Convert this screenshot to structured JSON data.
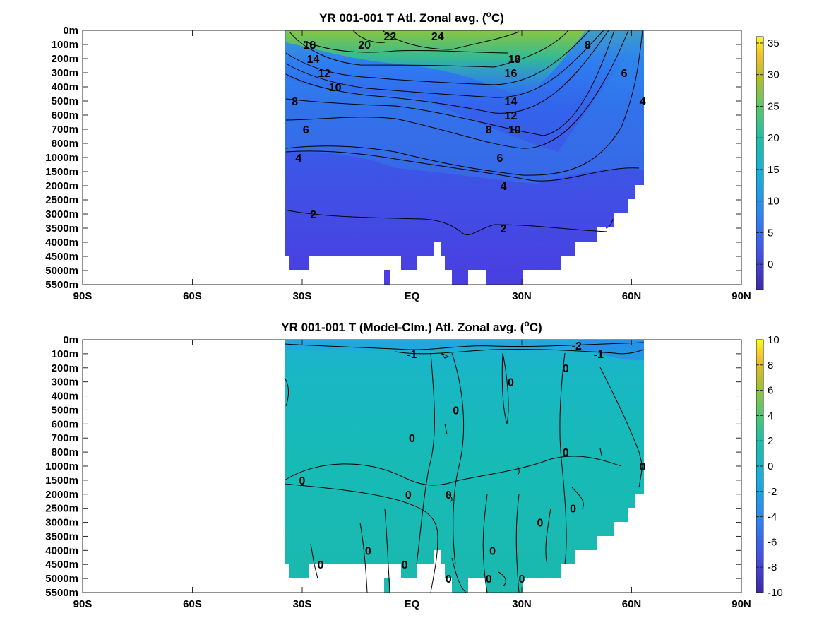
{
  "chart_data": [
    {
      "type": "heatmap",
      "title_parts": [
        "YR 001-001 T Atl. Zonal avg. (",
        "o",
        "C)"
      ],
      "x_ticks": [
        "90S",
        "60S",
        "30S",
        "EQ",
        "30N",
        "60N",
        "90N"
      ],
      "x_tick_values": [
        -90,
        -60,
        -30,
        0,
        30,
        60,
        90
      ],
      "xlim": [
        -90,
        90
      ],
      "y_ticks": [
        "0m",
        "100m",
        "200m",
        "300m",
        "400m",
        "500m",
        "600m",
        "700m",
        "800m",
        "1000m",
        "1500m",
        "2000m",
        "2500m",
        "3000m",
        "3500m",
        "4000m",
        "4500m",
        "5000m",
        "5500m"
      ],
      "colorbar": {
        "ticks": [
          "0",
          "5",
          "10",
          "15",
          "20",
          "25",
          "30",
          "35"
        ],
        "tick_values": [
          0,
          5,
          10,
          15,
          20,
          25,
          30,
          35
        ],
        "range": [
          -4,
          36
        ]
      },
      "data_extent": {
        "lat": [
          -34,
          63
        ]
      },
      "contour_labels": [
        {
          "text": "24",
          "lat": 7,
          "depth": "0m"
        },
        {
          "text": "22",
          "lat": -6,
          "depth": "0m"
        },
        {
          "text": "20",
          "lat": -13,
          "depth": "100m"
        },
        {
          "text": "18",
          "lat": -28,
          "depth": "100m"
        },
        {
          "text": "16",
          "lat": -28,
          "depth": "100m"
        },
        {
          "text": "14",
          "lat": -27,
          "depth": "200m"
        },
        {
          "text": "12",
          "lat": -24,
          "depth": "300m"
        },
        {
          "text": "10",
          "lat": -21,
          "depth": "400m"
        },
        {
          "text": "8",
          "lat": -32,
          "depth": "500m"
        },
        {
          "text": "6",
          "lat": -29,
          "depth": "700m"
        },
        {
          "text": "4",
          "lat": -31,
          "depth": "1000m"
        },
        {
          "text": "2",
          "lat": -27,
          "depth": "3000m"
        },
        {
          "text": "2",
          "lat": 25,
          "depth": "3500m"
        },
        {
          "text": "4",
          "lat": 25,
          "depth": "2000m"
        },
        {
          "text": "6",
          "lat": 24,
          "depth": "1000m"
        },
        {
          "text": "8",
          "lat": 21,
          "depth": "700m"
        },
        {
          "text": "10",
          "lat": 28,
          "depth": "700m"
        },
        {
          "text": "12",
          "lat": 27,
          "depth": "600m"
        },
        {
          "text": "14",
          "lat": 27,
          "depth": "500m"
        },
        {
          "text": "16",
          "lat": 27,
          "depth": "300m"
        },
        {
          "text": "18",
          "lat": 28,
          "depth": "200m"
        },
        {
          "text": "8",
          "lat": 48,
          "depth": "100m"
        },
        {
          "text": "6",
          "lat": 58,
          "depth": "300m"
        },
        {
          "text": "4",
          "lat": 63,
          "depth": "500m"
        }
      ]
    },
    {
      "type": "heatmap",
      "title_parts": [
        "YR 001-001 T (Model-Clm.) Atl. Zonal avg. (",
        "o",
        "C)"
      ],
      "x_ticks": [
        "90S",
        "60S",
        "30S",
        "EQ",
        "30N",
        "60N",
        "90N"
      ],
      "x_tick_values": [
        -90,
        -60,
        -30,
        0,
        30,
        60,
        90
      ],
      "xlim": [
        -90,
        90
      ],
      "y_ticks": [
        "0m",
        "100m",
        "200m",
        "300m",
        "400m",
        "500m",
        "600m",
        "700m",
        "800m",
        "1000m",
        "1500m",
        "2000m",
        "2500m",
        "3000m",
        "3500m",
        "4000m",
        "4500m",
        "5000m",
        "5500m"
      ],
      "colorbar": {
        "ticks": [
          "10",
          "8",
          "6",
          "4",
          "2",
          "0",
          "-2",
          "-4",
          "-6",
          "-8",
          "-10"
        ],
        "tick_values": [
          10,
          8,
          6,
          4,
          2,
          0,
          -2,
          -4,
          -6,
          -8,
          -10
        ],
        "range": [
          -10,
          10
        ]
      },
      "data_extent": {
        "lat": [
          -34,
          63
        ]
      },
      "contour_labels": [
        {
          "text": "-2",
          "lat": 45,
          "depth": "0m"
        },
        {
          "text": "-1",
          "lat": 0,
          "depth": "100m"
        },
        {
          "text": "-1",
          "lat": 51,
          "depth": "100m"
        },
        {
          "text": "0",
          "lat": 42,
          "depth": "200m"
        },
        {
          "text": "0",
          "lat": 27,
          "depth": "300m"
        },
        {
          "text": "0",
          "lat": 12,
          "depth": "500m"
        },
        {
          "text": "0",
          "lat": 0,
          "depth": "700m"
        },
        {
          "text": "0",
          "lat": 42,
          "depth": "800m"
        },
        {
          "text": "0",
          "lat": 63,
          "depth": "1000m"
        },
        {
          "text": "0",
          "lat": -30,
          "depth": "1500m"
        },
        {
          "text": "0",
          "lat": -1,
          "depth": "2000m"
        },
        {
          "text": "0",
          "lat": 10,
          "depth": "2000m"
        },
        {
          "text": "0",
          "lat": 44,
          "depth": "2500m"
        },
        {
          "text": "0",
          "lat": 35,
          "depth": "3000m"
        },
        {
          "text": "0",
          "lat": -25,
          "depth": "4500m"
        },
        {
          "text": "0",
          "lat": -12,
          "depth": "4000m"
        },
        {
          "text": "0",
          "lat": -2,
          "depth": "4500m"
        },
        {
          "text": "0",
          "lat": 22,
          "depth": "4000m"
        },
        {
          "text": "0",
          "lat": 10,
          "depth": "5000m"
        },
        {
          "text": "0",
          "lat": 30,
          "depth": "5000m"
        },
        {
          "text": "0",
          "lat": 21,
          "depth": "5000m"
        }
      ]
    }
  ]
}
